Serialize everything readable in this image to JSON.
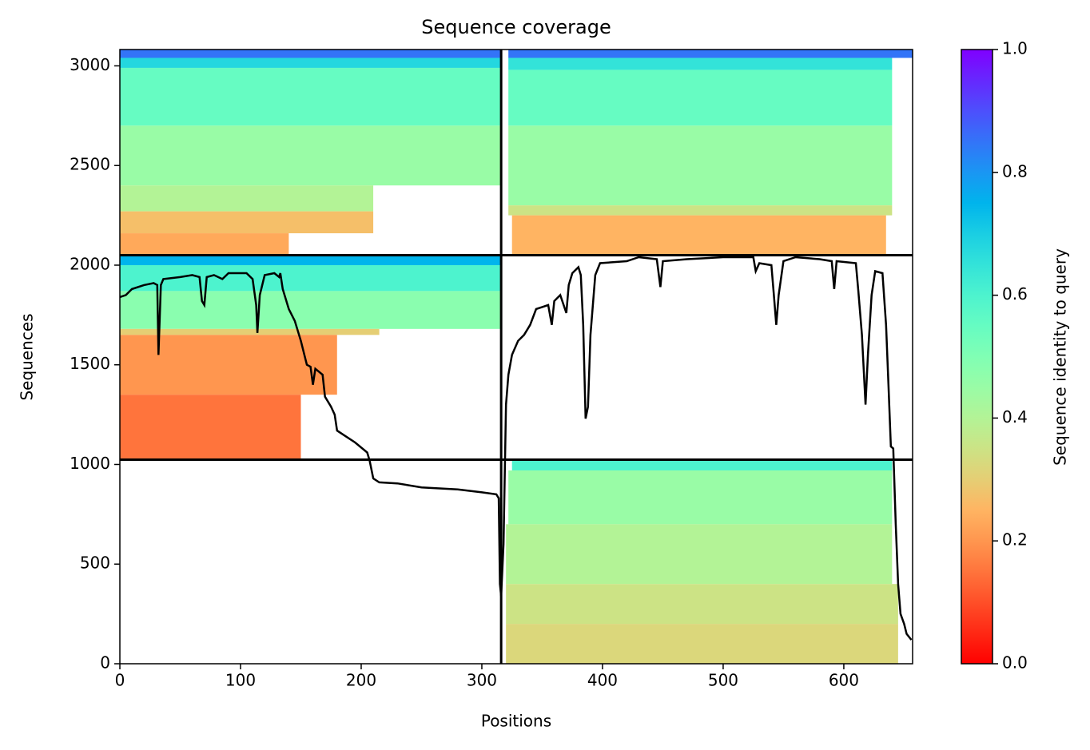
{
  "chart_data": {
    "type": "coverage",
    "title": "Sequence coverage",
    "xlabel": "Positions",
    "ylabel": "Sequences",
    "colorbar_label": "Sequence identity to query",
    "xlim": [
      0,
      657
    ],
    "ylim": [
      0,
      3082
    ],
    "xticks": [
      0,
      100,
      200,
      300,
      400,
      500,
      600
    ],
    "yticks": [
      0,
      500,
      1000,
      1500,
      2000,
      2500,
      3000
    ],
    "clim": [
      0,
      1
    ],
    "cticks": [
      {
        "value": 0,
        "label": "0.0"
      },
      {
        "value": 0.2,
        "label": "0.2"
      },
      {
        "value": 0.4,
        "label": "0.4"
      },
      {
        "value": 0.6,
        "label": "0.6"
      },
      {
        "value": 0.8,
        "label": "0.8"
      },
      {
        "value": 1,
        "label": "1.0"
      }
    ],
    "colormap": "rainbow_r",
    "dividers": {
      "x": [
        316
      ],
      "y": [
        1024,
        2050
      ]
    },
    "heatmap": [
      {
        "x0": 0,
        "x1": 316,
        "y0": 3040,
        "y1": 3082,
        "identity": 0.85
      },
      {
        "x0": 0,
        "x1": 316,
        "y0": 2990,
        "y1": 3040,
        "identity": 0.68
      },
      {
        "x0": 0,
        "x1": 316,
        "y0": 2700,
        "y1": 2990,
        "identity": 0.55
      },
      {
        "x0": 0,
        "x1": 316,
        "y0": 2400,
        "y1": 2700,
        "identity": 0.45
      },
      {
        "x0": 0,
        "x1": 210,
        "y0": 2270,
        "y1": 2400,
        "identity": 0.4
      },
      {
        "x0": 0,
        "x1": 210,
        "y0": 2160,
        "y1": 2270,
        "identity": 0.27
      },
      {
        "x0": 0,
        "x1": 140,
        "y0": 2050,
        "y1": 2160,
        "identity": 0.23
      },
      {
        "x0": 322,
        "x1": 657,
        "y0": 3040,
        "y1": 3082,
        "identity": 0.85
      },
      {
        "x0": 322,
        "x1": 640,
        "y0": 2980,
        "y1": 3040,
        "identity": 0.65
      },
      {
        "x0": 322,
        "x1": 640,
        "y0": 2700,
        "y1": 2980,
        "identity": 0.55
      },
      {
        "x0": 322,
        "x1": 640,
        "y0": 2300,
        "y1": 2700,
        "identity": 0.45
      },
      {
        "x0": 322,
        "x1": 640,
        "y0": 2250,
        "y1": 2300,
        "identity": 0.35
      },
      {
        "x0": 325,
        "x1": 635,
        "y0": 2050,
        "y1": 2250,
        "identity": 0.25
      },
      {
        "x0": 0,
        "x1": 316,
        "y0": 2000,
        "y1": 2050,
        "identity": 0.75
      },
      {
        "x0": 0,
        "x1": 316,
        "y0": 1870,
        "y1": 2000,
        "identity": 0.6
      },
      {
        "x0": 0,
        "x1": 316,
        "y0": 1680,
        "y1": 1870,
        "identity": 0.48
      },
      {
        "x0": 0,
        "x1": 215,
        "y0": 1650,
        "y1": 1680,
        "identity": 0.3
      },
      {
        "x0": 0,
        "x1": 180,
        "y0": 1350,
        "y1": 1650,
        "identity": 0.2
      },
      {
        "x0": 0,
        "x1": 150,
        "y0": 1024,
        "y1": 1350,
        "identity": 0.15
      },
      {
        "x0": 325,
        "x1": 640,
        "y0": 970,
        "y1": 1024,
        "identity": 0.6
      },
      {
        "x0": 322,
        "x1": 640,
        "y0": 700,
        "y1": 970,
        "identity": 0.45
      },
      {
        "x0": 320,
        "x1": 640,
        "y0": 400,
        "y1": 700,
        "identity": 0.4
      },
      {
        "x0": 320,
        "x1": 645,
        "y0": 200,
        "y1": 400,
        "identity": 0.35
      },
      {
        "x0": 320,
        "x1": 645,
        "y0": 0,
        "y1": 200,
        "identity": 0.32
      }
    ],
    "coverage": {
      "x": [
        0,
        5,
        10,
        20,
        28,
        31,
        32,
        34,
        36,
        50,
        60,
        66,
        68,
        70,
        72,
        78,
        85,
        90,
        105,
        110,
        113,
        114,
        116,
        120,
        128,
        132,
        133,
        135,
        140,
        145,
        150,
        155,
        158,
        160,
        162,
        168,
        170,
        175,
        178,
        180,
        185,
        195,
        205,
        207,
        210,
        215,
        230,
        250,
        280,
        300,
        312,
        314,
        315,
        316,
        318,
        320,
        322,
        325,
        330,
        335,
        340,
        345,
        350,
        355,
        358,
        360,
        365,
        370,
        372,
        375,
        380,
        382,
        384,
        386,
        388,
        390,
        392,
        394,
        398,
        420,
        430,
        445,
        448,
        450,
        470,
        500,
        525,
        527,
        530,
        540,
        542,
        544,
        546,
        550,
        560,
        580,
        590,
        592,
        594,
        610,
        612,
        615,
        618,
        620,
        623,
        626,
        632,
        635,
        637,
        639,
        641,
        643,
        645,
        647,
        650,
        652,
        656
      ],
      "values": [
        1840,
        1850,
        1880,
        1900,
        1910,
        1900,
        1550,
        1900,
        1930,
        1940,
        1950,
        1940,
        1820,
        1800,
        1940,
        1950,
        1930,
        1960,
        1960,
        1930,
        1800,
        1660,
        1850,
        1950,
        1960,
        1940,
        1960,
        1880,
        1780,
        1720,
        1620,
        1500,
        1490,
        1400,
        1480,
        1450,
        1340,
        1290,
        1250,
        1170,
        1150,
        1110,
        1060,
        1020,
        930,
        910,
        905,
        885,
        875,
        860,
        850,
        830,
        400,
        340,
        600,
        1300,
        1450,
        1550,
        1620,
        1650,
        1700,
        1780,
        1790,
        1800,
        1700,
        1820,
        1850,
        1760,
        1900,
        1960,
        1990,
        1950,
        1700,
        1230,
        1290,
        1650,
        1800,
        1950,
        2010,
        2020,
        2040,
        2030,
        1890,
        2020,
        2030,
        2040,
        2040,
        1970,
        2010,
        2000,
        1850,
        1700,
        1850,
        2020,
        2040,
        2030,
        2020,
        1880,
        2020,
        2010,
        1870,
        1650,
        1300,
        1550,
        1850,
        1970,
        1960,
        1700,
        1400,
        1090,
        1080,
        700,
        400,
        250,
        200,
        150,
        120
      ]
    }
  }
}
